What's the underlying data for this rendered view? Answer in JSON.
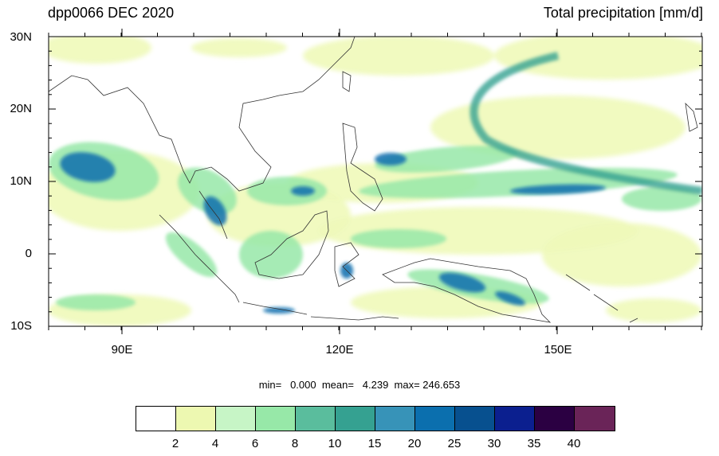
{
  "title_left": "dpp0066 DEC 2020",
  "title_right": "Total precipitation [mm/d]",
  "axes": {
    "lat_labels": [
      "30N",
      "20N",
      "10N",
      "0",
      "10S"
    ],
    "lon_labels": [
      "90E",
      "120E",
      "150E"
    ]
  },
  "stats": {
    "text": "min=   0.000  mean=   4.239  max= 246.653"
  },
  "colorbar": {
    "levels": [
      "2",
      "4",
      "6",
      "8",
      "10",
      "15",
      "20",
      "25",
      "30",
      "35",
      "40"
    ],
    "colors": [
      "#ffffff",
      "#edf8b1",
      "#c7f5c6",
      "#97e8a8",
      "#5abd9d",
      "#35a191",
      "#3793b8",
      "#0b6fae",
      "#07508f",
      "#0b1f8f",
      "#2b0042",
      "#6a2458"
    ]
  },
  "map_colors": {
    "land_outline": "#333333",
    "light": "#edf8b1",
    "mid": "#97e8a8",
    "teal": "#35a191",
    "blue": "#0b6fae",
    "dark": "#0b1f8f"
  }
}
